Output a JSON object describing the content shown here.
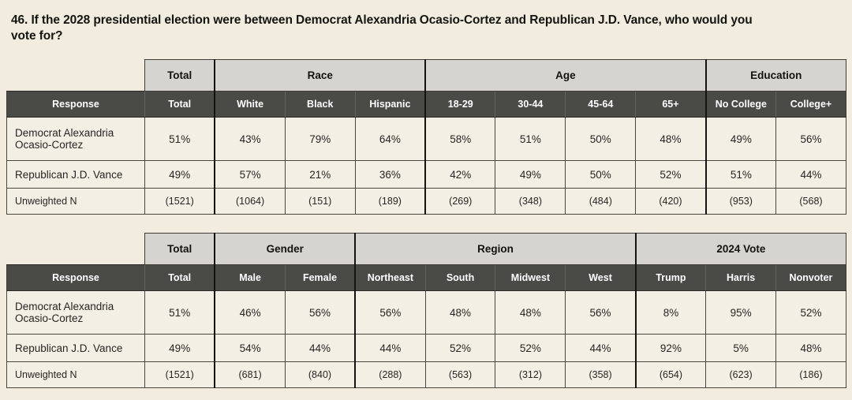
{
  "page": {
    "title_lines": [
      "46. If the 2028 presidential election were between Democrat Alexandria Ocasio-Cortez and Republican J.D. Vance, who would you",
      "vote for?"
    ],
    "colors": {
      "page_bg": "#f1ecdf",
      "group_header_bg": "#d6d4d0",
      "column_header_bg": "#4a4a47",
      "column_header_text": "#ffffff",
      "cell_bg": "#f4efe4",
      "border": "#403d36"
    }
  },
  "chart_data": [
    {
      "type": "table",
      "title": "46. If the 2028 presidential election were between Democrat Alexandria Ocasio-Cortez and Republican J.D. Vance, who would you vote for?",
      "response_header": "Response",
      "group_headers": [
        {
          "label": "Total",
          "span": 1
        },
        {
          "label": "Race",
          "span": 3
        },
        {
          "label": "Age",
          "span": 4
        },
        {
          "label": "Education",
          "span": 2
        }
      ],
      "columns": [
        "Total",
        "White",
        "Black",
        "Hispanic",
        "18-29",
        "30-44",
        "45-64",
        "65+",
        "No College",
        "College+"
      ],
      "rows": [
        {
          "label": "Democrat Alexandria Ocasio-Cortez",
          "values": [
            "51%",
            "43%",
            "79%",
            "64%",
            "58%",
            "51%",
            "50%",
            "48%",
            "49%",
            "56%"
          ]
        },
        {
          "label": "Republican J.D. Vance",
          "values": [
            "49%",
            "57%",
            "21%",
            "36%",
            "42%",
            "49%",
            "50%",
            "52%",
            "51%",
            "44%"
          ]
        },
        {
          "label": "Unweighted N",
          "values": [
            "(1521)",
            "(1064)",
            "(151)",
            "(189)",
            "(269)",
            "(348)",
            "(484)",
            "(420)",
            "(953)",
            "(568)"
          ]
        }
      ]
    },
    {
      "type": "table",
      "title": "46. If the 2028 presidential election were between Democrat Alexandria Ocasio-Cortez and Republican J.D. Vance, who would you vote for?",
      "response_header": "Response",
      "group_headers": [
        {
          "label": "Total",
          "span": 1
        },
        {
          "label": "Gender",
          "span": 2
        },
        {
          "label": "Region",
          "span": 4
        },
        {
          "label": "2024 Vote",
          "span": 3
        }
      ],
      "columns": [
        "Total",
        "Male",
        "Female",
        "Northeast",
        "South",
        "Midwest",
        "West",
        "Trump",
        "Harris",
        "Nonvoter"
      ],
      "rows": [
        {
          "label": "Democrat Alexandria Ocasio-Cortez",
          "values": [
            "51%",
            "46%",
            "56%",
            "56%",
            "48%",
            "48%",
            "56%",
            "8%",
            "95%",
            "52%"
          ]
        },
        {
          "label": "Republican J.D. Vance",
          "values": [
            "49%",
            "54%",
            "44%",
            "44%",
            "52%",
            "52%",
            "44%",
            "92%",
            "5%",
            "48%"
          ]
        },
        {
          "label": "Unweighted N",
          "values": [
            "(1521)",
            "(681)",
            "(840)",
            "(288)",
            "(563)",
            "(312)",
            "(358)",
            "(654)",
            "(623)",
            "(186)"
          ]
        }
      ]
    }
  ]
}
